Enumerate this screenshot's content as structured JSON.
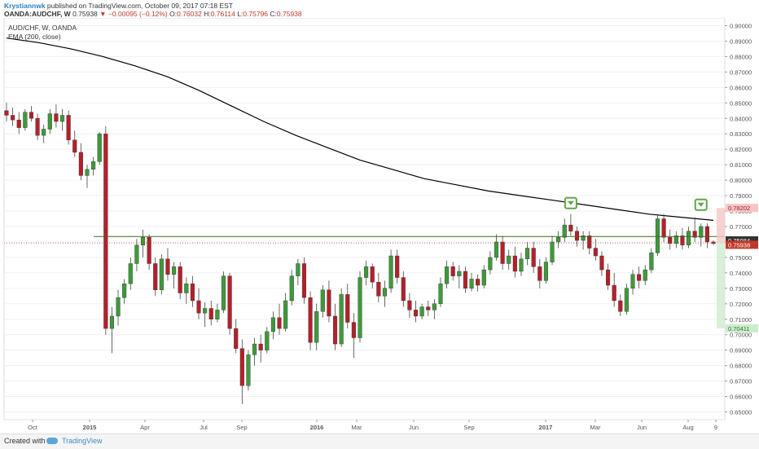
{
  "header": {
    "author": "Krystiannwk",
    "published_text": "published on TradingView.com, October 09, 2017 07:18 EST",
    "symbol": "OANDA:AUDCHF, W",
    "last": "0.75938",
    "down_arrow": "▼",
    "change": "−0.00095 (−0.12%)",
    "o_label": "O:",
    "o_value": "0.76032",
    "h_label": "H:",
    "h_value": "0.76114",
    "l_label": "L:",
    "l_value": "0.75796",
    "c_label": "C:",
    "c_value": "0.75938"
  },
  "legend": {
    "pair": "AUD/CHF, W, OANDA",
    "ema": "EMA (200, close)"
  },
  "footer": {
    "created_with": "Created with",
    "brand": "TradingView"
  },
  "colors": {
    "up": "#3e9a3b",
    "down": "#b5202a",
    "ema": "#000000",
    "resistance": "#3a6b1a",
    "marker": "#5fa64a",
    "price_line": "#c0392b",
    "axis_text": "#555555",
    "grid": "#f0f0f0"
  },
  "chart_data": {
    "type": "candlestick",
    "ylim": [
      0.645,
      0.905
    ],
    "y_ticks": [
      "0.65000",
      "0.66000",
      "0.67000",
      "0.68000",
      "0.69000",
      "0.70000",
      "0.71000",
      "0.72000",
      "0.73000",
      "0.74000",
      "0.75000",
      "0.76000",
      "0.77000",
      "0.78000",
      "0.79000",
      "0.80000",
      "0.81000",
      "0.82000",
      "0.83000",
      "0.84000",
      "0.85000",
      "0.86000",
      "0.87000",
      "0.88000",
      "0.89000",
      "0.90000"
    ],
    "x_tick_labels": [
      "Oct",
      "2015",
      "Apr",
      "Jul",
      "Sep",
      "2016",
      "Mar",
      "Jun",
      "Sep",
      "2017",
      "Mar",
      "Jun",
      "Aug",
      "9"
    ],
    "resistance_level": 0.7635,
    "current_price": 0.75938,
    "price_labels": {
      "top_red": "0.78202",
      "dark": "0.75984",
      "red": "0.75938",
      "green": "0.70411"
    },
    "ema_200": [
      0.892,
      0.889,
      0.885,
      0.88,
      0.874,
      0.867,
      0.858,
      0.848,
      0.838,
      0.829,
      0.821,
      0.813,
      0.807,
      0.801,
      0.797,
      0.793,
      0.79,
      0.787,
      0.784,
      0.781,
      0.778,
      0.776,
      0.774
    ],
    "candles": [
      [
        0.845,
        0.85,
        0.838,
        0.842
      ],
      [
        0.842,
        0.847,
        0.835,
        0.839
      ],
      [
        0.839,
        0.844,
        0.83,
        0.834
      ],
      [
        0.834,
        0.846,
        0.832,
        0.844
      ],
      [
        0.844,
        0.848,
        0.838,
        0.84
      ],
      [
        0.84,
        0.843,
        0.826,
        0.829
      ],
      [
        0.829,
        0.836,
        0.824,
        0.833
      ],
      [
        0.833,
        0.846,
        0.83,
        0.843
      ],
      [
        0.843,
        0.849,
        0.834,
        0.838
      ],
      [
        0.838,
        0.846,
        0.832,
        0.842
      ],
      [
        0.842,
        0.845,
        0.823,
        0.826
      ],
      [
        0.826,
        0.832,
        0.815,
        0.818
      ],
      [
        0.818,
        0.824,
        0.8,
        0.803
      ],
      [
        0.803,
        0.81,
        0.795,
        0.807
      ],
      [
        0.807,
        0.815,
        0.803,
        0.812
      ],
      [
        0.812,
        0.831,
        0.81,
        0.83
      ],
      [
        0.83,
        0.835,
        0.7,
        0.704
      ],
      [
        0.704,
        0.718,
        0.688,
        0.712
      ],
      [
        0.712,
        0.729,
        0.706,
        0.724
      ],
      [
        0.724,
        0.736,
        0.72,
        0.733
      ],
      [
        0.733,
        0.75,
        0.729,
        0.746
      ],
      [
        0.746,
        0.762,
        0.741,
        0.758
      ],
      [
        0.758,
        0.768,
        0.75,
        0.763
      ],
      [
        0.763,
        0.765,
        0.742,
        0.746
      ],
      [
        0.746,
        0.75,
        0.725,
        0.729
      ],
      [
        0.729,
        0.752,
        0.726,
        0.749
      ],
      [
        0.749,
        0.756,
        0.735,
        0.739
      ],
      [
        0.739,
        0.747,
        0.73,
        0.744
      ],
      [
        0.744,
        0.747,
        0.723,
        0.727
      ],
      [
        0.727,
        0.737,
        0.72,
        0.733
      ],
      [
        0.733,
        0.738,
        0.718,
        0.722
      ],
      [
        0.722,
        0.73,
        0.71,
        0.714
      ],
      [
        0.714,
        0.721,
        0.705,
        0.717
      ],
      [
        0.717,
        0.722,
        0.706,
        0.71
      ],
      [
        0.71,
        0.72,
        0.708,
        0.716
      ],
      [
        0.716,
        0.741,
        0.714,
        0.738
      ],
      [
        0.738,
        0.74,
        0.7,
        0.704
      ],
      [
        0.704,
        0.71,
        0.688,
        0.691
      ],
      [
        0.691,
        0.697,
        0.655,
        0.667
      ],
      [
        0.667,
        0.69,
        0.664,
        0.687
      ],
      [
        0.687,
        0.698,
        0.68,
        0.694
      ],
      [
        0.694,
        0.7,
        0.682,
        0.69
      ],
      [
        0.69,
        0.705,
        0.688,
        0.702
      ],
      [
        0.702,
        0.715,
        0.697,
        0.711
      ],
      [
        0.711,
        0.72,
        0.7,
        0.704
      ],
      [
        0.704,
        0.727,
        0.702,
        0.722
      ],
      [
        0.722,
        0.742,
        0.719,
        0.738
      ],
      [
        0.738,
        0.749,
        0.732,
        0.746
      ],
      [
        0.746,
        0.75,
        0.72,
        0.724
      ],
      [
        0.724,
        0.728,
        0.69,
        0.695
      ],
      [
        0.695,
        0.72,
        0.69,
        0.715
      ],
      [
        0.715,
        0.732,
        0.711,
        0.729
      ],
      [
        0.729,
        0.735,
        0.708,
        0.712
      ],
      [
        0.712,
        0.72,
        0.69,
        0.694
      ],
      [
        0.694,
        0.73,
        0.692,
        0.726
      ],
      [
        0.726,
        0.733,
        0.704,
        0.708
      ],
      [
        0.708,
        0.714,
        0.685,
        0.698
      ],
      [
        0.698,
        0.741,
        0.695,
        0.737
      ],
      [
        0.737,
        0.748,
        0.732,
        0.744
      ],
      [
        0.744,
        0.746,
        0.73,
        0.734
      ],
      [
        0.734,
        0.74,
        0.721,
        0.725
      ],
      [
        0.725,
        0.735,
        0.718,
        0.73
      ],
      [
        0.73,
        0.755,
        0.727,
        0.751
      ],
      [
        0.751,
        0.755,
        0.733,
        0.737
      ],
      [
        0.737,
        0.741,
        0.718,
        0.722
      ],
      [
        0.722,
        0.727,
        0.711,
        0.716
      ],
      [
        0.716,
        0.722,
        0.708,
        0.712
      ],
      [
        0.712,
        0.72,
        0.71,
        0.718
      ],
      [
        0.718,
        0.722,
        0.712,
        0.716
      ],
      [
        0.716,
        0.723,
        0.71,
        0.72
      ],
      [
        0.72,
        0.737,
        0.718,
        0.733
      ],
      [
        0.733,
        0.748,
        0.73,
        0.744
      ],
      [
        0.744,
        0.747,
        0.735,
        0.738
      ],
      [
        0.738,
        0.745,
        0.73,
        0.741
      ],
      [
        0.741,
        0.744,
        0.727,
        0.73
      ],
      [
        0.73,
        0.74,
        0.728,
        0.736
      ],
      [
        0.736,
        0.739,
        0.728,
        0.732
      ],
      [
        0.732,
        0.745,
        0.73,
        0.742
      ],
      [
        0.742,
        0.754,
        0.739,
        0.75
      ],
      [
        0.75,
        0.765,
        0.748,
        0.76
      ],
      [
        0.76,
        0.764,
        0.742,
        0.746
      ],
      [
        0.746,
        0.755,
        0.742,
        0.751
      ],
      [
        0.751,
        0.757,
        0.737,
        0.741
      ],
      [
        0.741,
        0.753,
        0.738,
        0.749
      ],
      [
        0.749,
        0.76,
        0.745,
        0.756
      ],
      [
        0.756,
        0.76,
        0.74,
        0.744
      ],
      [
        0.744,
        0.749,
        0.73,
        0.735
      ],
      [
        0.735,
        0.75,
        0.733,
        0.747
      ],
      [
        0.747,
        0.764,
        0.745,
        0.76
      ],
      [
        0.76,
        0.767,
        0.756,
        0.763
      ],
      [
        0.763,
        0.775,
        0.76,
        0.771
      ],
      [
        0.771,
        0.778,
        0.764,
        0.767
      ],
      [
        0.767,
        0.77,
        0.757,
        0.761
      ],
      [
        0.761,
        0.767,
        0.755,
        0.764
      ],
      [
        0.764,
        0.767,
        0.752,
        0.756
      ],
      [
        0.756,
        0.762,
        0.748,
        0.751
      ],
      [
        0.751,
        0.754,
        0.738,
        0.742
      ],
      [
        0.742,
        0.746,
        0.729,
        0.732
      ],
      [
        0.732,
        0.74,
        0.718,
        0.722
      ],
      [
        0.722,
        0.726,
        0.712,
        0.715
      ],
      [
        0.715,
        0.733,
        0.713,
        0.73
      ],
      [
        0.73,
        0.742,
        0.726,
        0.739
      ],
      [
        0.739,
        0.744,
        0.73,
        0.735
      ],
      [
        0.735,
        0.745,
        0.732,
        0.742
      ],
      [
        0.742,
        0.756,
        0.74,
        0.753
      ],
      [
        0.753,
        0.778,
        0.751,
        0.775
      ],
      [
        0.775,
        0.778,
        0.76,
        0.763
      ],
      [
        0.763,
        0.768,
        0.755,
        0.759
      ],
      [
        0.759,
        0.767,
        0.756,
        0.764
      ],
      [
        0.764,
        0.769,
        0.755,
        0.758
      ],
      [
        0.758,
        0.77,
        0.756,
        0.767
      ],
      [
        0.767,
        0.776,
        0.76,
        0.763
      ],
      [
        0.763,
        0.772,
        0.757,
        0.77
      ],
      [
        0.77,
        0.772,
        0.756,
        0.76
      ],
      [
        0.76,
        0.761,
        0.758,
        0.759
      ]
    ]
  }
}
